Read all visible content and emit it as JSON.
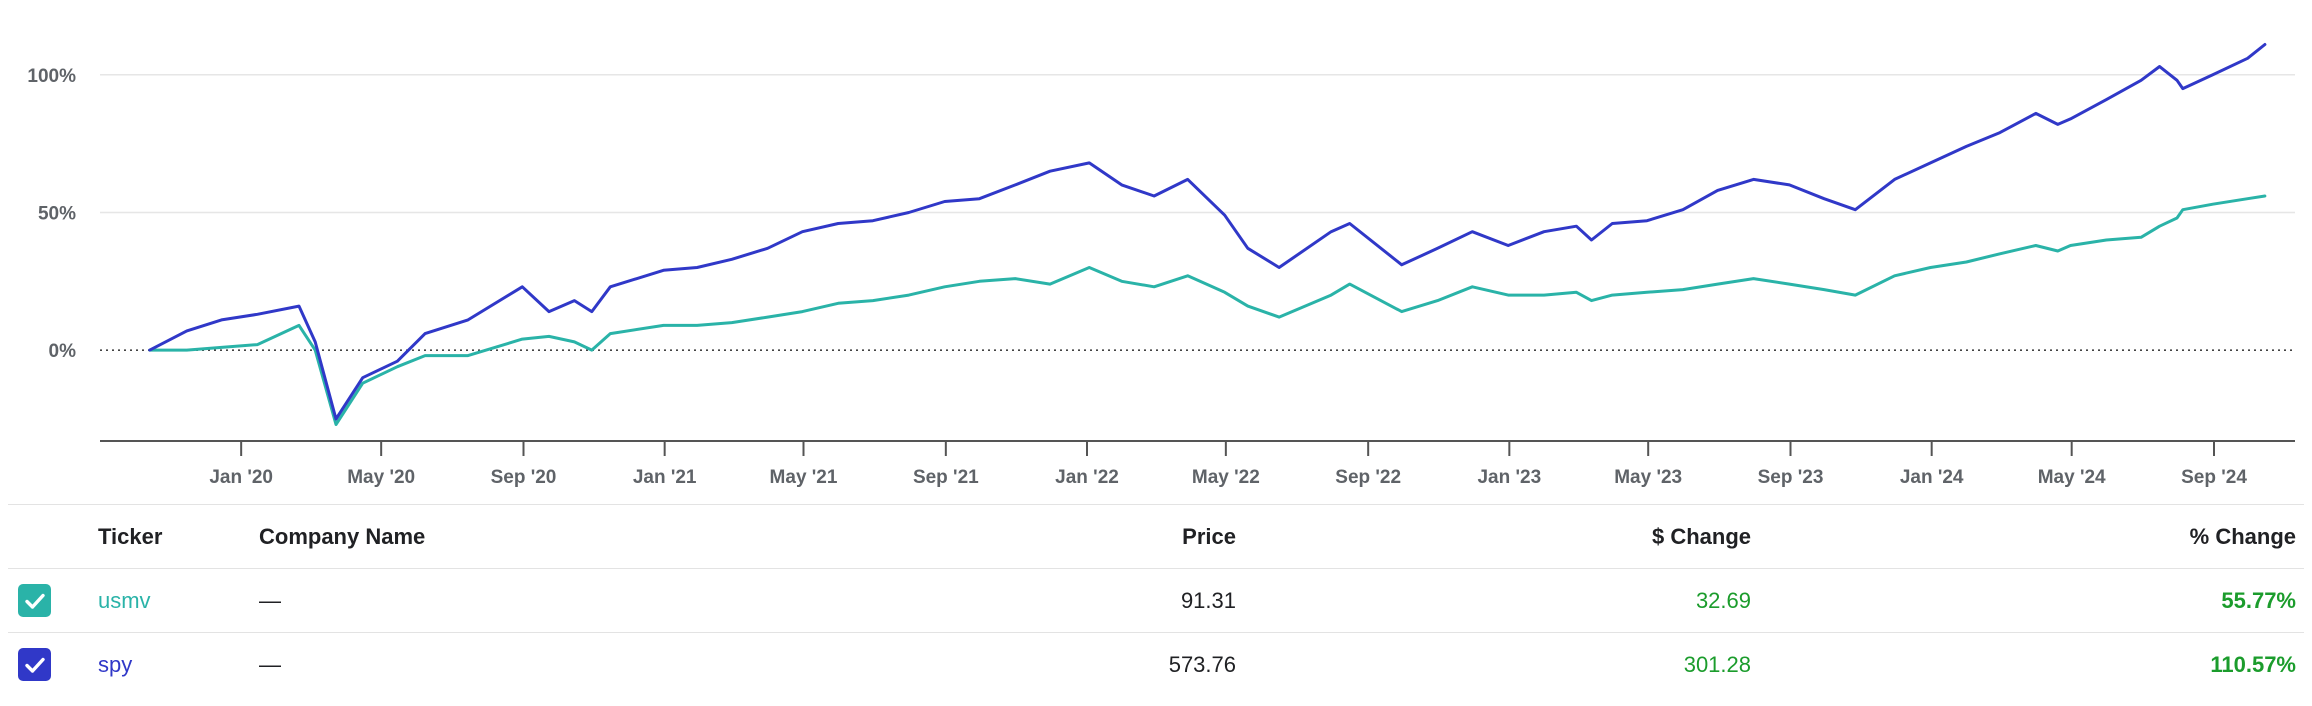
{
  "chart_data": {
    "type": "line",
    "title": "",
    "xlabel": "",
    "ylabel": "",
    "y_tick_labels": [
      "100%",
      "50%",
      "0%"
    ],
    "y_ticks": [
      100,
      50,
      0
    ],
    "ylim": [
      -33,
      117
    ],
    "x_tick_labels": [
      "Jan '20",
      "May '20",
      "Sep '20",
      "Jan '21",
      "May '21",
      "Sep '21",
      "Jan '22",
      "May '22",
      "Sep '22",
      "Jan '23",
      "May '23",
      "Sep '23",
      "Jan '24",
      "May '24",
      "Sep '24"
    ],
    "x_ticks": [
      "2020-01-01",
      "2020-05-01",
      "2020-09-01",
      "2021-01-01",
      "2021-05-01",
      "2021-09-01",
      "2022-01-01",
      "2022-05-01",
      "2022-09-01",
      "2023-01-01",
      "2023-05-01",
      "2023-09-01",
      "2024-01-01",
      "2024-05-01",
      "2024-09-01"
    ],
    "xlim": [
      "2019-09-01",
      "2024-11-10"
    ],
    "grid": true,
    "series": [
      {
        "name": "spy",
        "color": "#3038c8",
        "x": [
          "2019-10-14",
          "2019-11-15",
          "2019-12-15",
          "2020-01-15",
          "2020-02-20",
          "2020-03-05",
          "2020-03-23",
          "2020-04-15",
          "2020-05-15",
          "2020-06-08",
          "2020-07-15",
          "2020-08-31",
          "2020-09-23",
          "2020-10-15",
          "2020-10-30",
          "2020-11-15",
          "2020-12-31",
          "2021-01-29",
          "2021-02-28",
          "2021-03-31",
          "2021-04-30",
          "2021-05-31",
          "2021-06-30",
          "2021-07-31",
          "2021-08-31",
          "2021-09-30",
          "2021-10-31",
          "2021-11-30",
          "2022-01-03",
          "2022-01-31",
          "2022-02-28",
          "2022-03-29",
          "2022-04-30",
          "2022-05-20",
          "2022-06-16",
          "2022-07-31",
          "2022-08-16",
          "2022-09-30",
          "2022-10-31",
          "2022-11-30",
          "2022-12-31",
          "2023-01-31",
          "2023-02-28",
          "2023-03-13",
          "2023-03-31",
          "2023-04-30",
          "2023-05-31",
          "2023-06-30",
          "2023-07-31",
          "2023-08-31",
          "2023-09-30",
          "2023-10-27",
          "2023-11-30",
          "2023-12-31",
          "2024-01-31",
          "2024-02-29",
          "2024-03-31",
          "2024-04-19",
          "2024-04-30",
          "2024-05-31",
          "2024-06-30",
          "2024-07-16",
          "2024-07-31",
          "2024-08-05",
          "2024-08-31",
          "2024-09-30",
          "2024-10-15"
        ],
        "values": [
          0,
          7,
          11,
          13,
          16,
          3,
          -25,
          -10,
          -4,
          6,
          11,
          23,
          14,
          18,
          14,
          23,
          29,
          30,
          33,
          37,
          43,
          46,
          47,
          50,
          54,
          55,
          60,
          65,
          68,
          60,
          56,
          62,
          49,
          37,
          30,
          43,
          46,
          31,
          37,
          43,
          38,
          43,
          45,
          40,
          46,
          47,
          51,
          58,
          62,
          60,
          55,
          51,
          62,
          68,
          74,
          79,
          86,
          82,
          84,
          91,
          98,
          103,
          98,
          95,
          100,
          106,
          111
        ]
      },
      {
        "name": "usmv",
        "color": "#2ab3a8",
        "x": [
          "2019-10-14",
          "2019-11-15",
          "2019-12-15",
          "2020-01-15",
          "2020-02-20",
          "2020-03-05",
          "2020-03-23",
          "2020-04-15",
          "2020-05-15",
          "2020-06-08",
          "2020-07-15",
          "2020-08-31",
          "2020-09-23",
          "2020-10-15",
          "2020-10-30",
          "2020-11-15",
          "2020-12-31",
          "2021-01-29",
          "2021-02-28",
          "2021-03-31",
          "2021-04-30",
          "2021-05-31",
          "2021-06-30",
          "2021-07-31",
          "2021-08-31",
          "2021-09-30",
          "2021-10-31",
          "2021-11-30",
          "2022-01-03",
          "2022-01-31",
          "2022-02-28",
          "2022-03-29",
          "2022-04-30",
          "2022-05-20",
          "2022-06-16",
          "2022-07-31",
          "2022-08-16",
          "2022-09-30",
          "2022-10-31",
          "2022-11-30",
          "2022-12-31",
          "2023-01-31",
          "2023-02-28",
          "2023-03-13",
          "2023-03-31",
          "2023-04-30",
          "2023-05-31",
          "2023-06-30",
          "2023-07-31",
          "2023-08-31",
          "2023-09-30",
          "2023-10-27",
          "2023-11-30",
          "2023-12-31",
          "2024-01-31",
          "2024-02-29",
          "2024-03-31",
          "2024-04-19",
          "2024-04-30",
          "2024-05-31",
          "2024-06-30",
          "2024-07-16",
          "2024-07-31",
          "2024-08-05",
          "2024-08-31",
          "2024-09-30",
          "2024-10-15"
        ],
        "values": [
          0,
          0,
          1,
          2,
          9,
          0,
          -27,
          -12,
          -6,
          -2,
          -2,
          4,
          5,
          3,
          0,
          6,
          9,
          9,
          10,
          12,
          14,
          17,
          18,
          20,
          23,
          25,
          26,
          24,
          30,
          25,
          23,
          27,
          21,
          16,
          12,
          20,
          24,
          14,
          18,
          23,
          20,
          20,
          21,
          18,
          20,
          21,
          22,
          24,
          26,
          24,
          22,
          20,
          27,
          30,
          32,
          35,
          38,
          36,
          38,
          40,
          41,
          45,
          48,
          51,
          53,
          55,
          56
        ]
      }
    ]
  },
  "table": {
    "headers": {
      "ticker": "Ticker",
      "company": "Company Name",
      "price": "Price",
      "dollar_change": "$ Change",
      "percent_change": "% Change"
    },
    "rows": [
      {
        "checked": true,
        "color": "#2ab3a8",
        "ticker": "usmv",
        "company": "—",
        "price": "91.31",
        "dollar_change": "32.69",
        "percent_change": "55.77%"
      },
      {
        "checked": true,
        "color": "#3038c8",
        "ticker": "spy",
        "company": "—",
        "price": "573.76",
        "dollar_change": "301.28",
        "percent_change": "110.57%"
      }
    ]
  },
  "icons": {
    "checkbox": "check-icon"
  },
  "colors": {
    "positive": "#1b9c2c"
  }
}
